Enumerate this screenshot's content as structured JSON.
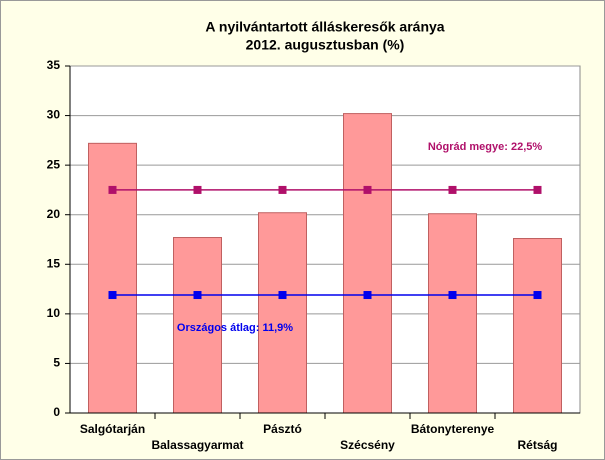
{
  "chart_data": {
    "type": "bar",
    "title": [
      "A nyilvántartott álláskeresők aránya",
      "2012. augusztusban (%)"
    ],
    "categories": [
      "Salgótarján",
      "Balassagyarmat",
      "Pásztó",
      "Szécsény",
      "Bátonyterenye",
      "Rétság"
    ],
    "values": [
      27.2,
      17.7,
      20.2,
      30.2,
      20.1,
      17.6
    ],
    "color": "#ff9999",
    "lines": [
      {
        "color": "#b0106a",
        "values": [
          22.5,
          22.5,
          22.5,
          22.5,
          22.5,
          22.5
        ],
        "annotation": "Nógrád megye: 22,5%"
      },
      {
        "color": "#0000ee",
        "values": [
          11.9,
          11.9,
          11.9,
          11.9,
          11.9,
          11.9
        ],
        "annotation": "Országos átlag: 11,9%"
      }
    ],
    "ylim": [
      0,
      35
    ],
    "yticks": [
      0,
      5,
      10,
      15,
      20,
      25,
      30,
      35
    ],
    "grid": true
  }
}
